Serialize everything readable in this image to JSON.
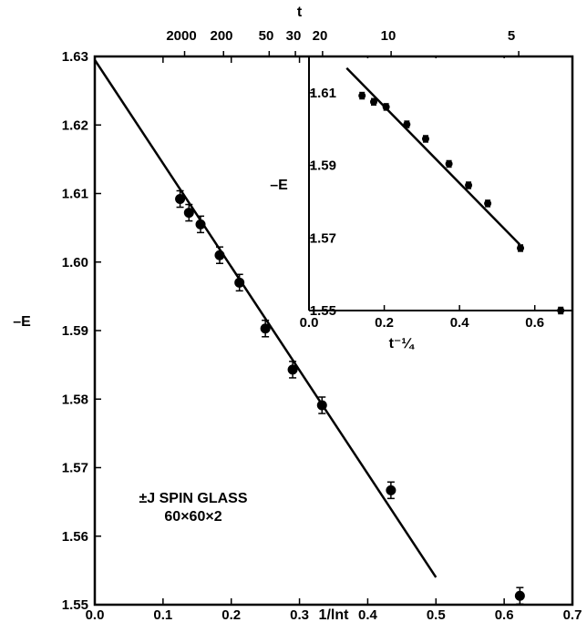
{
  "chart_data": [
    {
      "type": "scatter",
      "xlabel": "1/lnt",
      "ylabel": "–E",
      "top_axis_label": "t",
      "xlim": [
        0.0,
        0.7
      ],
      "ylim": [
        1.55,
        1.63
      ],
      "x_ticks": [
        0.0,
        0.1,
        0.2,
        0.3,
        0.4,
        0.5,
        0.6,
        0.7
      ],
      "x_tick_labels": [
        "0.0",
        "0.1",
        "0.2",
        "0.3",
        "0.4",
        "0.5",
        "0.6",
        "0.7"
      ],
      "y_ticks": [
        1.55,
        1.56,
        1.57,
        1.58,
        1.59,
        1.6,
        1.61,
        1.62,
        1.63
      ],
      "y_tick_labels": [
        "1.55",
        "1.56",
        "1.57",
        "1.58",
        "1.59",
        "1.60",
        "1.61",
        "1.62",
        "1.63"
      ],
      "top_ticks": [
        {
          "label": "2000",
          "x": 0.1316
        },
        {
          "label": "200",
          "x": 0.1887
        },
        {
          "label": "50",
          "x": 0.2556
        },
        {
          "label": "30",
          "x": 0.294
        },
        {
          "label": "20",
          "x": 0.3338
        },
        {
          "label": "10",
          "x": 0.4343
        },
        {
          "label": "5",
          "x": 0.6213
        }
      ],
      "grid": false,
      "series": [
        {
          "points": [
            {
              "x": 0.125,
              "y": 1.6092
            },
            {
              "x": 0.138,
              "y": 1.6072
            },
            {
              "x": 0.155,
              "y": 1.6055
            },
            {
              "x": 0.183,
              "y": 1.601
            },
            {
              "x": 0.212,
              "y": 1.597
            },
            {
              "x": 0.25,
              "y": 1.5903
            },
            {
              "x": 0.29,
              "y": 1.5843
            },
            {
              "x": 0.333,
              "y": 1.5791
            },
            {
              "x": 0.434,
              "y": 1.5667
            },
            {
              "x": 0.623,
              "y": 1.5513
            }
          ],
          "error": 0.0012
        }
      ],
      "fit_line": {
        "x": [
          0.0,
          0.5
        ],
        "y": [
          1.6295,
          1.554
        ]
      },
      "annotation": [
        "±J SPIN GLASS",
        "60×60×2"
      ]
    },
    {
      "type": "scatter",
      "xlabel": "t⁻¼",
      "ylabel": "–E",
      "xlim": [
        0.0,
        0.7
      ],
      "ylim": [
        1.55,
        1.62
      ],
      "x_ticks": [
        0.0,
        0.2,
        0.4,
        0.6
      ],
      "x_tick_labels": [
        "0.0",
        "0.2",
        "0.4",
        "0.6"
      ],
      "y_ticks": [
        1.55,
        1.57,
        1.59,
        1.61
      ],
      "y_tick_labels": [
        "1.55",
        "1.57",
        "1.59",
        "1.61"
      ],
      "grid": false,
      "series": [
        {
          "points": [
            {
              "x": 0.141,
              "y": 1.6092
            },
            {
              "x": 0.172,
              "y": 1.6075
            },
            {
              "x": 0.205,
              "y": 1.6061
            },
            {
              "x": 0.26,
              "y": 1.6013
            },
            {
              "x": 0.31,
              "y": 1.5973
            },
            {
              "x": 0.372,
              "y": 1.5904
            },
            {
              "x": 0.424,
              "y": 1.5845
            },
            {
              "x": 0.475,
              "y": 1.5795
            },
            {
              "x": 0.562,
              "y": 1.5672
            },
            {
              "x": 0.669,
              "y": 1.55
            }
          ],
          "error": 0.0009
        }
      ],
      "fit_line": {
        "x": [
          0.1,
          0.56
        ],
        "y": [
          1.6168,
          1.5682
        ]
      }
    }
  ]
}
